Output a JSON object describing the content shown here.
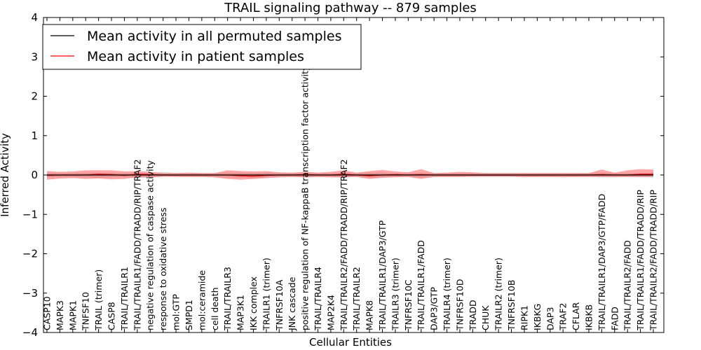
{
  "chart_data": {
    "type": "line",
    "title": "TRAIL signaling pathway -- 879 samples",
    "xlabel": "Cellular Entities",
    "ylabel": "Inferred Activity",
    "ylim": [
      -4,
      4
    ],
    "yticks": [
      -4,
      -3,
      -2,
      -1,
      0,
      1,
      2,
      3,
      4
    ],
    "ytick_labels": [
      "−4",
      "−3",
      "−2",
      "−1",
      "0",
      "1",
      "2",
      "3",
      "4"
    ],
    "legend_position": "top-left",
    "categories": [
      "CASP10",
      "MAPK3",
      "MAPK1",
      "TNFSF10",
      "TRAIL (trimer)",
      "CASP8",
      "TRAIL/TRAILR1",
      "TRAIL/TRAILR1/FADD/TRADD/RIP/TRAF2",
      "negative regulation of caspase activity",
      "response to oxidative stress",
      "mol:GTP",
      "SMPD1",
      "mol:ceramide",
      "cell death",
      "TRAIL/TRAILR3",
      "MAP3K1",
      "IKK complex",
      "TRAILR1 (trimer)",
      "TNFRSF10A",
      "JNK cascade",
      "positive regulation of NF-kappaB transcription factor activity",
      "TRAIL/TRAILR4",
      "MAP2K4",
      "TRAIL/TRAILR2/FADD/TRADD/RIP/TRAF2",
      "TRAIL/TRAILR2",
      "MAPK8",
      "TRAIL/TRAILR1/DAP3/GTP",
      "TRAILR3 (trimer)",
      "TNFRSF10C",
      "TRAIL/TRAILR1/FADD",
      "DAP3/GTP",
      "TRAILR4 (trimer)",
      "TNFRSF10D",
      "TRADD",
      "CHUK",
      "TRAILR2 (trimer)",
      "TNFRSF10B",
      "RIPK1",
      "IKBKG",
      "DAP3",
      "TRAF2",
      "CFLAR",
      "IKBKB",
      "TRAIL/TRAILR1/DAP3/GTP/FADD",
      "FADD",
      "TRAIL/TRAILR2/FADD",
      "TRAIL/TRAILR1/FADD/TRADD/RIP",
      "TRAIL/TRAILR2/FADD/TRADD/RIP"
    ],
    "series": [
      {
        "name": "Mean activity in all permuted samples",
        "color": "#000000",
        "values": [
          0.0,
          0.0,
          0.0,
          0.0,
          0.0,
          0.0,
          0.0,
          0.0,
          0.0,
          0.0,
          0.0,
          0.0,
          0.0,
          0.0,
          0.0,
          0.0,
          0.0,
          0.0,
          0.0,
          0.0,
          0.0,
          0.0,
          0.0,
          0.0,
          0.0,
          0.0,
          0.0,
          0.0,
          0.0,
          0.0,
          0.0,
          0.0,
          0.0,
          0.0,
          0.0,
          0.0,
          0.0,
          0.0,
          0.0,
          0.0,
          0.0,
          0.0,
          0.0,
          0.0,
          0.0,
          0.0,
          0.0,
          0.0
        ],
        "band_lower": [
          -0.06,
          -0.05,
          -0.05,
          -0.06,
          -0.07,
          -0.06,
          -0.05,
          -0.07,
          -0.06,
          -0.05,
          -0.04,
          -0.05,
          -0.05,
          -0.05,
          -0.06,
          -0.07,
          -0.08,
          -0.06,
          -0.05,
          -0.05,
          -0.06,
          -0.05,
          -0.05,
          -0.06,
          -0.05,
          -0.07,
          -0.06,
          -0.05,
          -0.05,
          -0.06,
          -0.05,
          -0.05,
          -0.05,
          -0.05,
          -0.05,
          -0.05,
          -0.05,
          -0.06,
          -0.05,
          -0.05,
          -0.06,
          -0.05,
          -0.05,
          -0.06,
          -0.06,
          -0.05,
          -0.06,
          -0.06
        ],
        "band_upper": [
          0.05,
          0.05,
          0.05,
          0.06,
          0.06,
          0.06,
          0.05,
          0.06,
          0.05,
          0.08,
          0.05,
          0.05,
          0.05,
          0.05,
          0.06,
          0.06,
          0.05,
          0.06,
          0.05,
          0.05,
          0.06,
          0.05,
          0.05,
          0.06,
          0.05,
          0.06,
          0.06,
          0.05,
          0.05,
          0.06,
          0.05,
          0.05,
          0.05,
          0.05,
          0.05,
          0.05,
          0.05,
          0.05,
          0.05,
          0.05,
          0.05,
          0.05,
          0.05,
          0.06,
          0.05,
          0.05,
          0.05,
          0.06
        ]
      },
      {
        "name": "Mean activity in patient samples",
        "color": "#ff0000",
        "values": [
          -0.01,
          0.0,
          0.0,
          0.0,
          0.02,
          0.01,
          -0.01,
          0.02,
          0.01,
          0.0,
          0.0,
          0.0,
          0.0,
          0.0,
          0.0,
          -0.02,
          -0.03,
          -0.01,
          0.0,
          0.0,
          0.01,
          0.0,
          0.0,
          0.02,
          0.0,
          -0.02,
          0.0,
          0.01,
          0.0,
          0.01,
          0.0,
          0.0,
          0.0,
          0.0,
          0.0,
          0.0,
          0.0,
          0.0,
          0.0,
          0.0,
          0.0,
          0.0,
          0.0,
          0.01,
          0.0,
          0.0,
          0.02,
          0.02
        ],
        "band_lower": [
          -0.12,
          -0.09,
          -0.08,
          -0.1,
          -0.09,
          -0.11,
          -0.1,
          -0.06,
          -0.06,
          -0.04,
          -0.05,
          -0.05,
          -0.05,
          -0.06,
          -0.1,
          -0.12,
          -0.1,
          -0.08,
          -0.06,
          -0.05,
          -0.06,
          -0.05,
          -0.06,
          -0.06,
          -0.05,
          -0.1,
          -0.07,
          -0.06,
          -0.05,
          -0.1,
          -0.05,
          -0.05,
          -0.05,
          -0.04,
          -0.04,
          -0.04,
          -0.04,
          -0.05,
          -0.05,
          -0.05,
          -0.05,
          -0.05,
          -0.05,
          -0.05,
          -0.05,
          -0.05,
          -0.05,
          -0.05
        ],
        "band_upper": [
          0.1,
          0.08,
          0.09,
          0.12,
          0.12,
          0.12,
          0.09,
          0.1,
          0.08,
          0.05,
          0.05,
          0.06,
          0.05,
          0.05,
          0.12,
          0.1,
          0.09,
          0.1,
          0.07,
          0.06,
          0.08,
          0.06,
          0.08,
          0.12,
          0.06,
          0.1,
          0.13,
          0.09,
          0.07,
          0.15,
          0.05,
          0.06,
          0.08,
          0.07,
          0.05,
          0.05,
          0.05,
          0.05,
          0.05,
          0.05,
          0.05,
          0.05,
          0.05,
          0.14,
          0.06,
          0.12,
          0.15,
          0.14
        ]
      }
    ]
  }
}
